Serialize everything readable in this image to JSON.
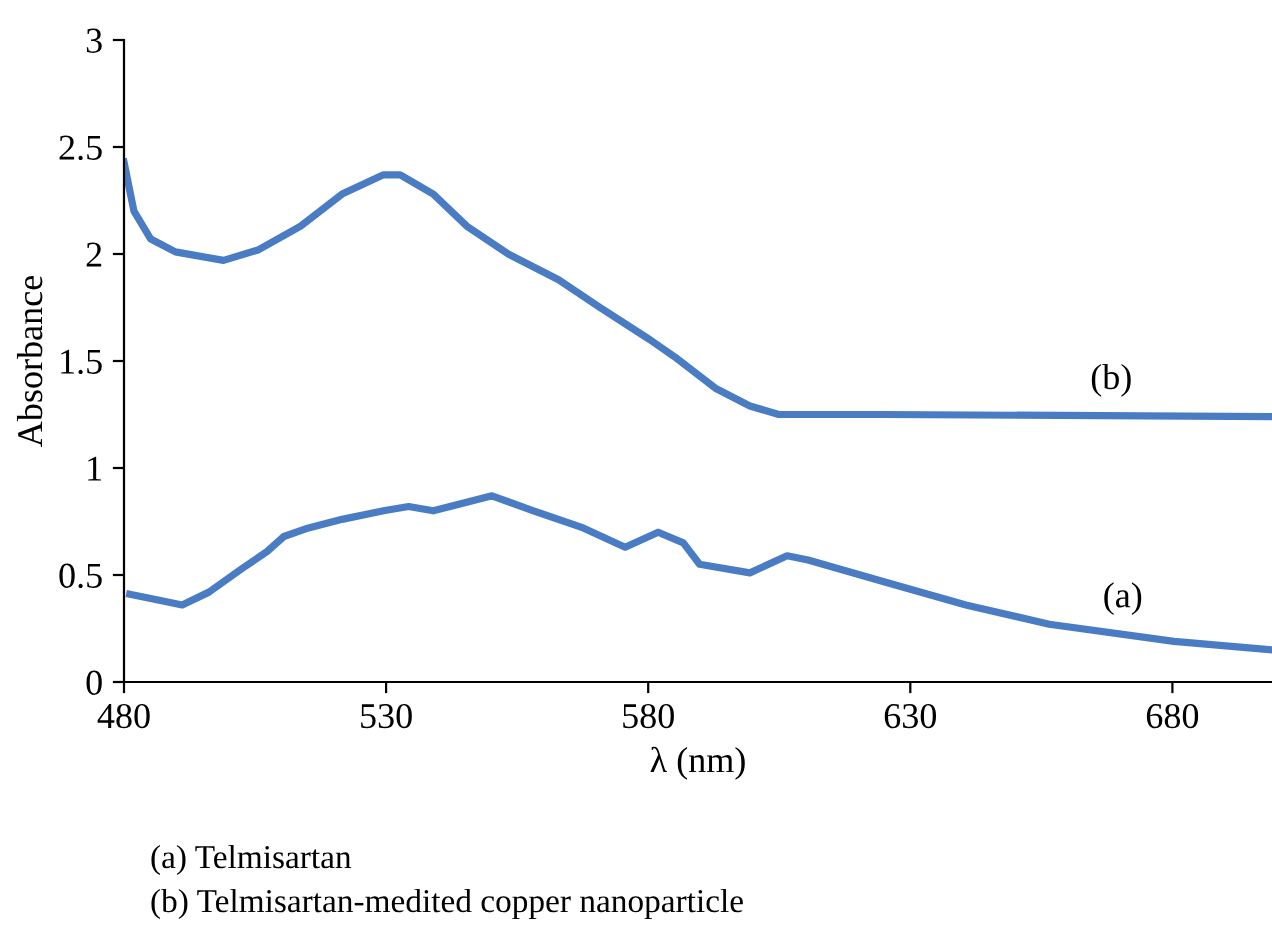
{
  "chart_data": {
    "type": "line",
    "xlabel": "λ (nm)",
    "ylabel": "Absorbance",
    "xlim": [
      480,
      699
    ],
    "xticks": [
      480,
      530,
      580,
      630,
      680
    ],
    "ylim": [
      0,
      3
    ],
    "yticks": [
      0,
      0.5,
      1,
      1.5,
      2,
      2.5,
      3
    ],
    "grid": false,
    "legend": false,
    "marker": "none",
    "line_style": "solid",
    "series": [
      {
        "color": "#4a7cc4",
        "x": [
          481.1,
          485.1,
          491.1,
          496.2,
          502.5,
          507.3,
          510.5,
          515.2,
          521.6,
          529.5,
          534.3,
          539,
          550.2,
          558.1,
          567.6,
          575.6,
          581.9,
          586.7,
          589.8,
          599.4,
          606.5,
          610.5,
          624.8,
          640.6,
          656.5,
          680.3,
          699
        ],
        "values": [
          0.41,
          0.39,
          0.36,
          0.42,
          0.53,
          0.61,
          0.68,
          0.72,
          0.76,
          0.8,
          0.82,
          0.8,
          0.87,
          0.8,
          0.72,
          0.63,
          0.7,
          0.65,
          0.55,
          0.51,
          0.59,
          0.57,
          0.47,
          0.36,
          0.27,
          0.19,
          0.15
        ]
      },
      {
        "color": "#4a7cc4",
        "x": [
          480,
          481.9,
          485.1,
          489.8,
          499,
          505.7,
          513.7,
          521.6,
          529.5,
          532.7,
          539,
          545.4,
          553.3,
          562.9,
          570.8,
          580.3,
          585,
          593,
          599.4,
          604.9,
          624.8,
          699
        ],
        "values": [
          2.43,
          2.2,
          2.07,
          2.01,
          1.97,
          2.02,
          2.13,
          2.28,
          2.37,
          2.37,
          2.28,
          2.13,
          2.0,
          1.88,
          1.75,
          1.6,
          1.52,
          1.37,
          1.29,
          1.25,
          1.25,
          1.24
        ]
      }
    ],
    "annotations": [
      "(b)",
      "(a)",
      "(a) Telmisartan",
      "(b) Telmisartan-medited copper nanoparticle"
    ]
  }
}
